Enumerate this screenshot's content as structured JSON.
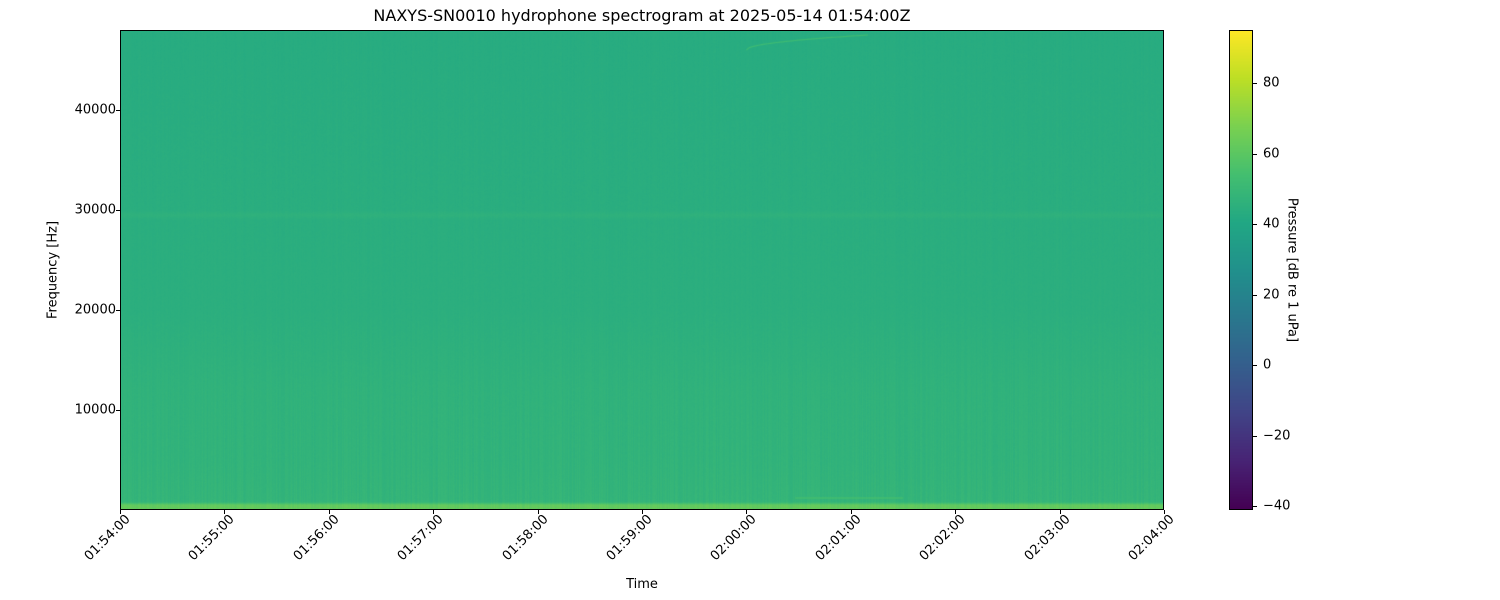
{
  "chart_data": {
    "type": "heatmap",
    "title": "NAXYS-SN0010 hydrophone spectrogram at 2025-05-14 01:54:00Z",
    "xlabel": "Time",
    "ylabel": "Frequency [Hz]",
    "xlim": [
      "01:54:00",
      "02:04:00"
    ],
    "ylim": [
      0,
      48000
    ],
    "x_ticks": [
      "01:54:00",
      "01:55:00",
      "01:56:00",
      "01:57:00",
      "01:58:00",
      "01:59:00",
      "02:00:00",
      "02:01:00",
      "02:02:00",
      "02:03:00",
      "02:04:00"
    ],
    "y_ticks": [
      10000,
      20000,
      30000,
      40000
    ],
    "y_tick_labels": [
      "10000",
      "20000",
      "30000",
      "40000"
    ],
    "colormap": "viridis",
    "colorbar": {
      "label": "Pressure [dB re 1 uPa]",
      "range": [
        -41,
        95
      ],
      "ticks": [
        -40,
        -20,
        0,
        20,
        40,
        60,
        80
      ],
      "tick_labels": [
        "−40",
        "−20",
        "0",
        "20",
        "40",
        "60",
        "80"
      ]
    },
    "mean_level_profile": [
      {
        "freq": 0,
        "db": 62
      },
      {
        "freq": 400,
        "db": 62
      },
      {
        "freq": 700,
        "db": 48
      },
      {
        "freq": 5000,
        "db": 47
      },
      {
        "freq": 12000,
        "db": 46.5
      },
      {
        "freq": 20000,
        "db": 44.5
      },
      {
        "freq": 29000,
        "db": 44
      },
      {
        "freq": 29500,
        "db": 46
      },
      {
        "freq": 30000,
        "db": 44
      },
      {
        "freq": 48000,
        "db": 43
      }
    ],
    "features": [
      {
        "type": "chirp",
        "t_start": "02:00:00",
        "t_end": "02:01:10",
        "freq_start": 46000,
        "freq_end": 47500,
        "db": 52
      },
      {
        "type": "tone",
        "t_start": "02:00:28",
        "t_end": "02:01:30",
        "freq_start": 1200,
        "freq_end": 1200,
        "db": 56
      }
    ]
  }
}
